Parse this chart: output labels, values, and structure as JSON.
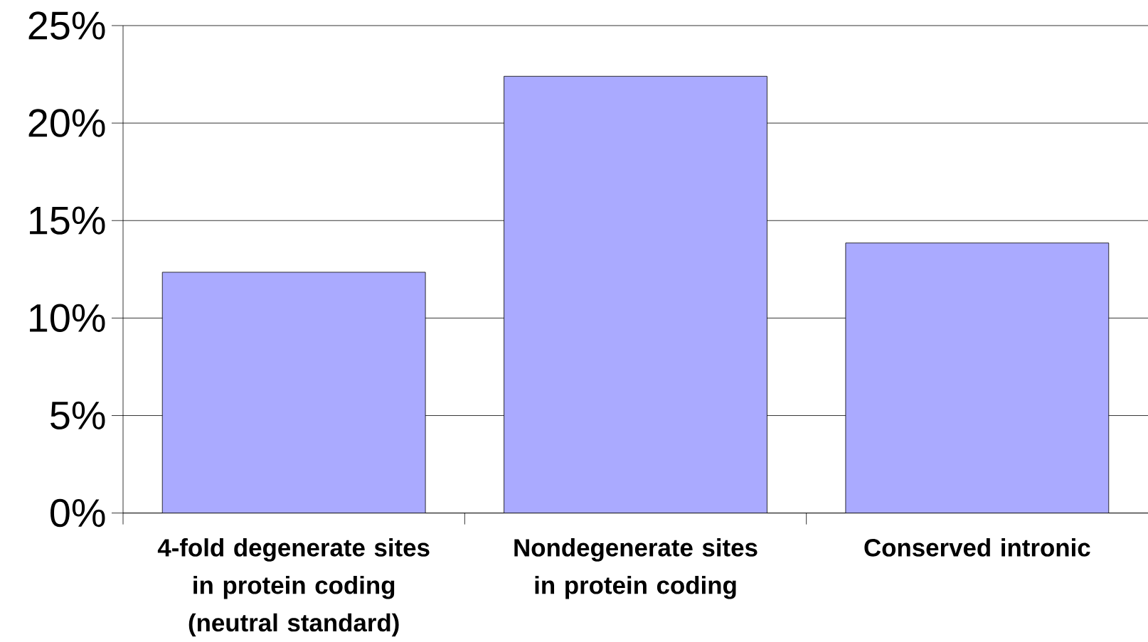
{
  "chart_data": {
    "type": "bar",
    "categories": [
      "4-fold degenerate sites in protein coding (neutral standard)",
      "Nondegenerate sites in protein coding",
      "Conserved intronic"
    ],
    "values": [
      12.35,
      22.4,
      13.85
    ],
    "color": "#aaaaff",
    "ylim": [
      0,
      25
    ],
    "yticks": [
      {
        "value": 0,
        "label": "0%"
      },
      {
        "value": 5,
        "label": "5%"
      },
      {
        "value": 10,
        "label": "10%"
      },
      {
        "value": 15,
        "label": "15%"
      },
      {
        "value": 20,
        "label": "20%"
      },
      {
        "value": 25,
        "label": "25%"
      }
    ],
    "grid": "y"
  }
}
